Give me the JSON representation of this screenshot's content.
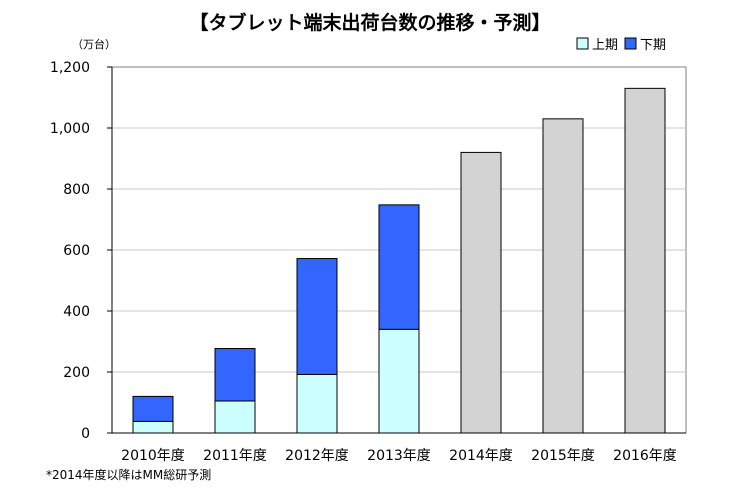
{
  "title": "【タブレット端末出荷台数の推移・予測】",
  "footnote": "*2014年度以降はMM総研予測",
  "colors": {
    "first_half": "#ccffff",
    "second_half": "#3366ff",
    "forecast": "#d3d3d3",
    "grid": "#c8c8c8",
    "bar_border": "#000000"
  },
  "chart_data": {
    "type": "bar",
    "stacked": true,
    "title": "【タブレット端末出荷台数の推移・予測】",
    "unit_label": "（万台）",
    "categories": [
      "2010年度",
      "2011年度",
      "2012年度",
      "2013年度",
      "2014年度",
      "2015年度",
      "2016年度"
    ],
    "series": [
      {
        "name": "上期",
        "color": "#ccffff",
        "values": [
          38,
          105,
          192,
          340,
          null,
          null,
          null
        ]
      },
      {
        "name": "下期",
        "color": "#3366ff",
        "values": [
          82,
          172,
          380,
          408,
          null,
          null,
          null
        ]
      }
    ],
    "forecast_totals": [
      null,
      null,
      null,
      null,
      920,
      1030,
      1130
    ],
    "ylim": [
      0,
      1200
    ],
    "yticks": [
      0,
      200,
      400,
      600,
      800,
      1000,
      1200
    ],
    "ytick_labels": [
      "0",
      "200",
      "400",
      "600",
      "800",
      "1,000",
      "1,200"
    ],
    "grid": true,
    "legend_position": "top-right"
  }
}
